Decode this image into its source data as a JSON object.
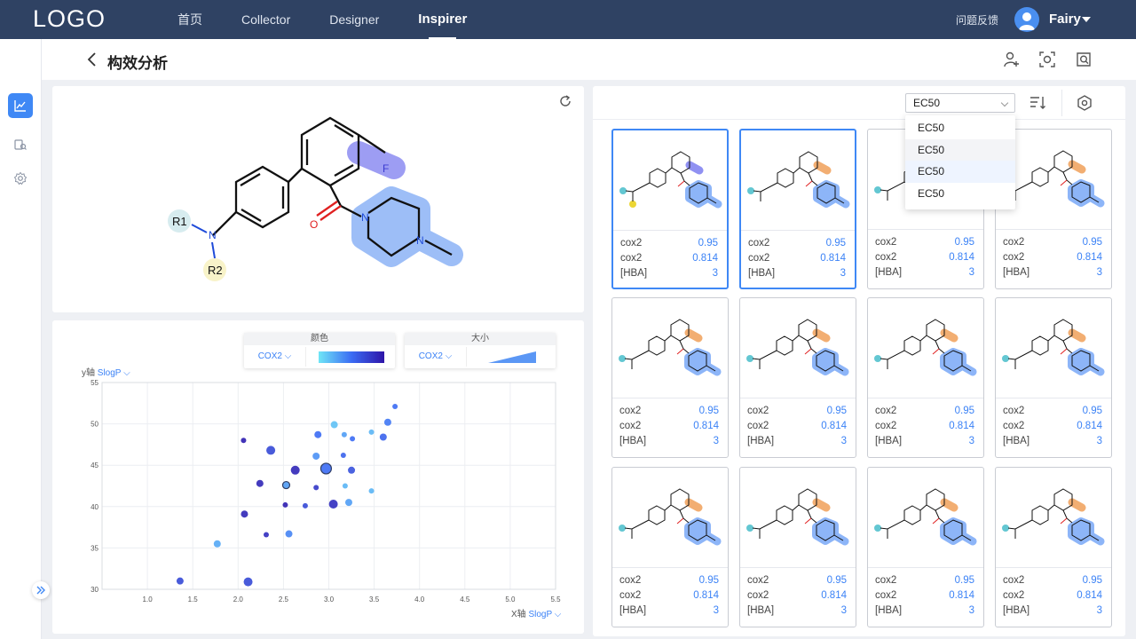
{
  "brand": {
    "logo": "LOGO"
  },
  "nav": {
    "items": [
      "首页",
      "Collector",
      "Designer",
      "Inspirer"
    ],
    "active_index": 3
  },
  "user": {
    "feedback": "问题反馈",
    "name": "Fairy"
  },
  "header": {
    "title": "构效分析"
  },
  "molecule": {
    "r1": "R1",
    "r2": "R2",
    "n": "N",
    "o": "O",
    "f": "F",
    "n2": "N",
    "n3": "N"
  },
  "scatter": {
    "color_legend": {
      "title": "颜色",
      "select": "COX2"
    },
    "size_legend": {
      "title": "大小",
      "select": "COX2"
    },
    "y_axis": {
      "label": "y轴",
      "value": "SlogP"
    },
    "x_axis": {
      "label": "X轴",
      "value": "SlogP"
    }
  },
  "chart_data": {
    "type": "scatter",
    "xlim": [
      0.5,
      5.5
    ],
    "ylim": [
      30,
      55
    ],
    "x_ticks": [
      "1.0",
      "1.5",
      "2.0",
      "2.5",
      "3.0",
      "3.5",
      "4.0",
      "4.5",
      "5.0",
      "5.5"
    ],
    "y_ticks": [
      "30",
      "35",
      "40",
      "45",
      "50",
      "55"
    ],
    "grid": true,
    "points": [
      {
        "x": 1.36,
        "y": 31.0,
        "s": 4,
        "c": 0.7
      },
      {
        "x": 1.77,
        "y": 35.5,
        "s": 4,
        "c": 0.25
      },
      {
        "x": 2.11,
        "y": 30.9,
        "s": 5,
        "c": 0.7
      },
      {
        "x": 2.07,
        "y": 39.1,
        "s": 4,
        "c": 0.9
      },
      {
        "x": 2.31,
        "y": 36.6,
        "s": 3,
        "c": 0.85
      },
      {
        "x": 2.56,
        "y": 36.7,
        "s": 4,
        "c": 0.4
      },
      {
        "x": 2.24,
        "y": 42.8,
        "s": 4,
        "c": 0.9
      },
      {
        "x": 2.52,
        "y": 40.2,
        "s": 3,
        "c": 0.95
      },
      {
        "x": 2.53,
        "y": 42.6,
        "s": 4,
        "c": 0.3,
        "highlight": true
      },
      {
        "x": 2.63,
        "y": 44.4,
        "s": 5,
        "c": 0.9
      },
      {
        "x": 2.36,
        "y": 46.8,
        "s": 5,
        "c": 0.7
      },
      {
        "x": 2.06,
        "y": 48.0,
        "s": 3,
        "c": 0.95
      },
      {
        "x": 2.74,
        "y": 40.1,
        "s": 3,
        "c": 0.7
      },
      {
        "x": 2.86,
        "y": 42.3,
        "s": 3,
        "c": 0.8
      },
      {
        "x": 2.86,
        "y": 46.1,
        "s": 4,
        "c": 0.35
      },
      {
        "x": 2.88,
        "y": 48.7,
        "s": 4,
        "c": 0.5
      },
      {
        "x": 2.97,
        "y": 44.6,
        "s": 6,
        "c": 0.5,
        "highlight": true
      },
      {
        "x": 3.05,
        "y": 40.3,
        "s": 5,
        "c": 0.85
      },
      {
        "x": 3.06,
        "y": 49.9,
        "s": 4,
        "c": 0.15
      },
      {
        "x": 3.17,
        "y": 48.7,
        "s": 3,
        "c": 0.3
      },
      {
        "x": 3.16,
        "y": 46.2,
        "s": 3,
        "c": 0.55
      },
      {
        "x": 3.18,
        "y": 42.5,
        "s": 3,
        "c": 0.2
      },
      {
        "x": 3.22,
        "y": 40.5,
        "s": 4,
        "c": 0.3
      },
      {
        "x": 3.25,
        "y": 44.4,
        "s": 4,
        "c": 0.65
      },
      {
        "x": 3.26,
        "y": 48.2,
        "s": 3,
        "c": 0.5
      },
      {
        "x": 3.47,
        "y": 41.9,
        "s": 3,
        "c": 0.2
      },
      {
        "x": 3.47,
        "y": 49.0,
        "s": 3,
        "c": 0.2
      },
      {
        "x": 3.6,
        "y": 48.4,
        "s": 4,
        "c": 0.55
      },
      {
        "x": 3.65,
        "y": 50.2,
        "s": 4,
        "c": 0.45
      },
      {
        "x": 3.73,
        "y": 52.1,
        "s": 3,
        "c": 0.5
      }
    ]
  },
  "grid_toolbar": {
    "select": "EC50",
    "options": [
      "EC50",
      "EC50",
      "EC50",
      "EC50"
    ]
  },
  "cards": [
    {
      "rows": [
        [
          "cox2",
          "0.95"
        ],
        [
          "cox2",
          "0.814"
        ],
        [
          "[HBA]",
          "3"
        ]
      ],
      "selected": true,
      "variant": "purple"
    },
    {
      "rows": [
        [
          "cox2",
          "0.95"
        ],
        [
          "cox2",
          "0.814"
        ],
        [
          "[HBA]",
          "3"
        ]
      ],
      "selected": true,
      "variant": "orange"
    },
    {
      "rows": [
        [
          "cox2",
          "0.95"
        ],
        [
          "cox2",
          "0.814"
        ],
        [
          "[HBA]",
          "3"
        ]
      ],
      "selected": false,
      "variant": "orange"
    },
    {
      "rows": [
        [
          "cox2",
          "0.95"
        ],
        [
          "cox2",
          "0.814"
        ],
        [
          "[HBA]",
          "3"
        ]
      ],
      "selected": false,
      "variant": "orange"
    },
    {
      "rows": [
        [
          "cox2",
          "0.95"
        ],
        [
          "cox2",
          "0.814"
        ],
        [
          "[HBA]",
          "3"
        ]
      ],
      "selected": false,
      "variant": "orange"
    },
    {
      "rows": [
        [
          "cox2",
          "0.95"
        ],
        [
          "cox2",
          "0.814"
        ],
        [
          "[HBA]",
          "3"
        ]
      ],
      "selected": false,
      "variant": "orange"
    },
    {
      "rows": [
        [
          "cox2",
          "0.95"
        ],
        [
          "cox2",
          "0.814"
        ],
        [
          "[HBA]",
          "3"
        ]
      ],
      "selected": false,
      "variant": "orange"
    },
    {
      "rows": [
        [
          "cox2",
          "0.95"
        ],
        [
          "cox2",
          "0.814"
        ],
        [
          "[HBA]",
          "3"
        ]
      ],
      "selected": false,
      "variant": "orange"
    },
    {
      "rows": [
        [
          "cox2",
          "0.95"
        ],
        [
          "cox2",
          "0.814"
        ],
        [
          "[HBA]",
          "3"
        ]
      ],
      "selected": false,
      "variant": "orange"
    },
    {
      "rows": [
        [
          "cox2",
          "0.95"
        ],
        [
          "cox2",
          "0.814"
        ],
        [
          "[HBA]",
          "3"
        ]
      ],
      "selected": false,
      "variant": "orange"
    },
    {
      "rows": [
        [
          "cox2",
          "0.95"
        ],
        [
          "cox2",
          "0.814"
        ],
        [
          "[HBA]",
          "3"
        ]
      ],
      "selected": false,
      "variant": "orange"
    },
    {
      "rows": [
        [
          "cox2",
          "0.95"
        ],
        [
          "cox2",
          "0.814"
        ],
        [
          "[HBA]",
          "3"
        ]
      ],
      "selected": false,
      "variant": "orange"
    }
  ],
  "colors": {
    "nav_bg": "#2f4263",
    "accent": "#3f88f5",
    "highlight_blue": "#7aa9f7",
    "highlight_orange": "#f0a15a",
    "highlight_purple": "#7d7ef0"
  }
}
